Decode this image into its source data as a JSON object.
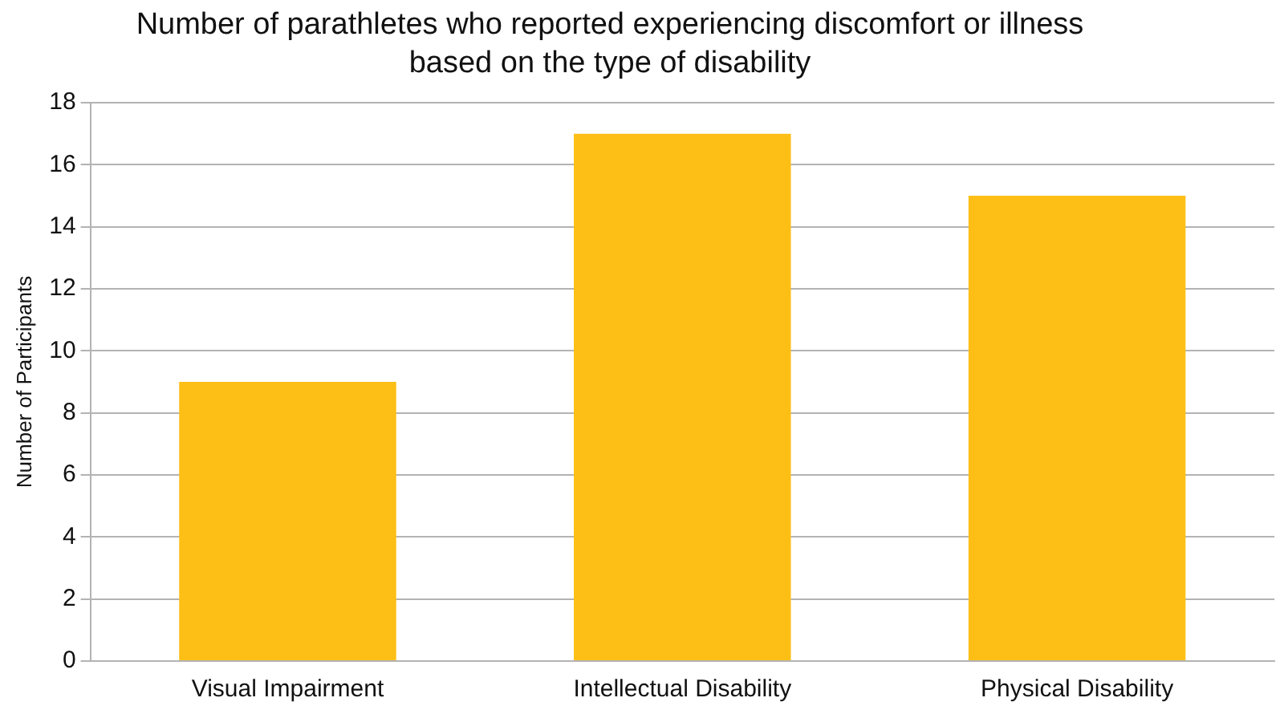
{
  "chart_data": {
    "type": "bar",
    "title": "Number of parathletes who reported experiencing discomfort or illness based on the type of disability",
    "ylabel": "Number of Participants",
    "categories": [
      "Visual Impairment",
      "Intellectual Disability",
      "Physical Disability"
    ],
    "values": [
      9,
      17,
      15
    ],
    "color": "#fdbf16",
    "ylim": [
      0,
      18
    ],
    "yticks": [
      0,
      2,
      4,
      6,
      8,
      10,
      12,
      14,
      16,
      18
    ],
    "grid": "y",
    "legend": false
  }
}
